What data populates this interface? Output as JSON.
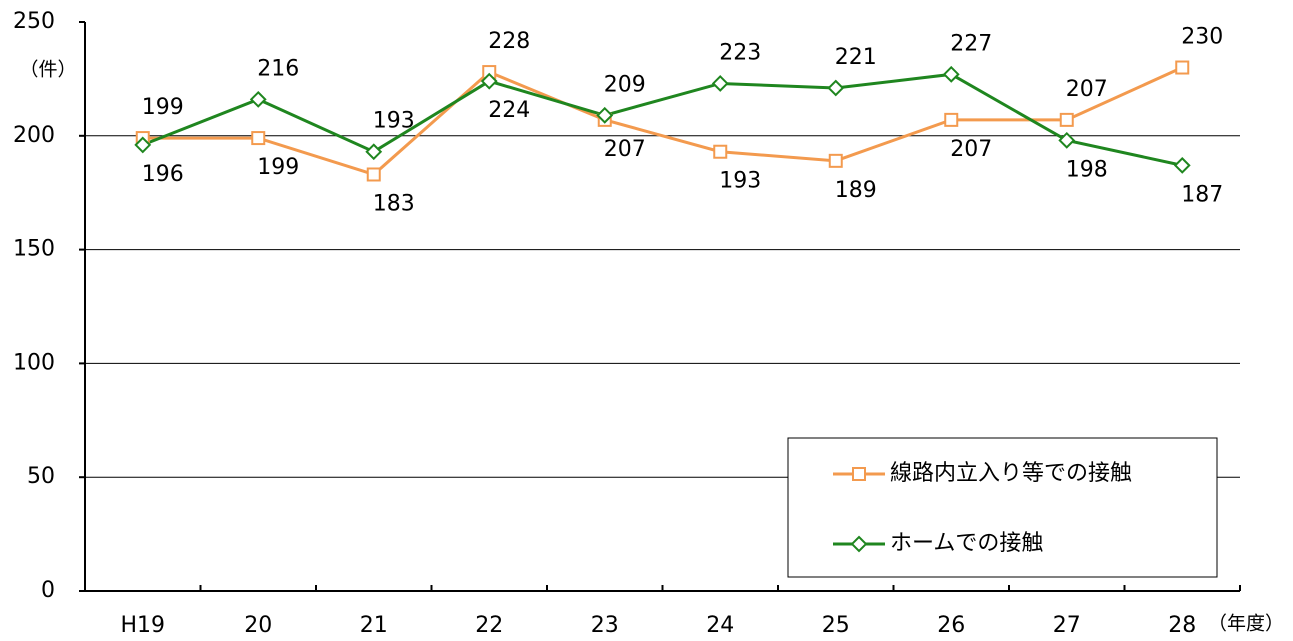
{
  "chart_data": {
    "type": "line",
    "y_label": "（件）",
    "x_label": "（年度）",
    "categories": [
      "H19",
      "20",
      "21",
      "22",
      "23",
      "24",
      "25",
      "26",
      "27",
      "28"
    ],
    "series": [
      {
        "name": "線路内立入り等での接触",
        "color": "#f39a4e",
        "marker": "square",
        "values": [
          199,
          199,
          183,
          228,
          207,
          193,
          189,
          207,
          207,
          230
        ]
      },
      {
        "name": "ホームでの接触",
        "color": "#1f861f",
        "marker": "diamond",
        "values": [
          196,
          216,
          193,
          224,
          209,
          223,
          221,
          227,
          198,
          187
        ]
      }
    ],
    "ylim": [
      0,
      250
    ],
    "yticks": [
      0,
      50,
      100,
      150,
      200,
      250
    ],
    "grid": true,
    "legend": "lower right"
  }
}
